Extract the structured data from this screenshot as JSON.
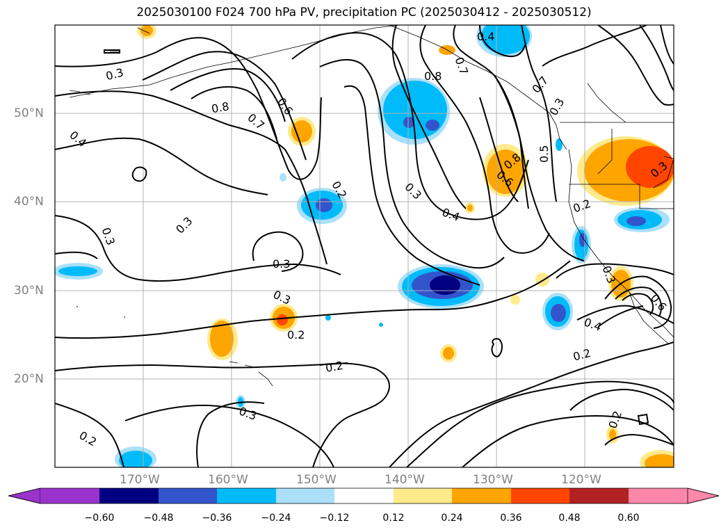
{
  "title": "2025030100 F024 700 hPa PV, precipitation PC (2025030412 - 2025030512)",
  "lat_labels": [
    "50°N",
    "40°N",
    "30°N",
    "20°N"
  ],
  "lon_labels": [
    "170°W",
    "160°W",
    "150°W",
    "140°W",
    "130°W",
    "120°W"
  ],
  "contour_labels": [
    "0.3",
    "0.8",
    "0.7",
    "0.6",
    "0.4",
    "0.4",
    "0.8",
    "0.7",
    "0.7",
    "0.3",
    "0.5",
    "0.8",
    "0.6",
    "0.2",
    "0.3",
    "0.4",
    "0.2",
    "0.3",
    "0.3",
    "0.3",
    "0.3",
    "0.2",
    "0.2",
    "0.4",
    "0.2",
    "0.3",
    "0.2",
    "0.2",
    "0.3",
    "0.6",
    "0.3"
  ],
  "colorbar": {
    "ticks": [
      "−0.60",
      "−0.48",
      "−0.36",
      "−0.24",
      "−0.12",
      "0.12",
      "0.24",
      "0.36",
      "0.48",
      "0.60"
    ],
    "colors": [
      "#9933cc",
      "#000080",
      "#3355cc",
      "#00bbf9",
      "#aae0fa",
      "#ffffff",
      "#ffea8c",
      "#ffa500",
      "#ff4500",
      "#b22222",
      "#ff88aa"
    ]
  }
}
